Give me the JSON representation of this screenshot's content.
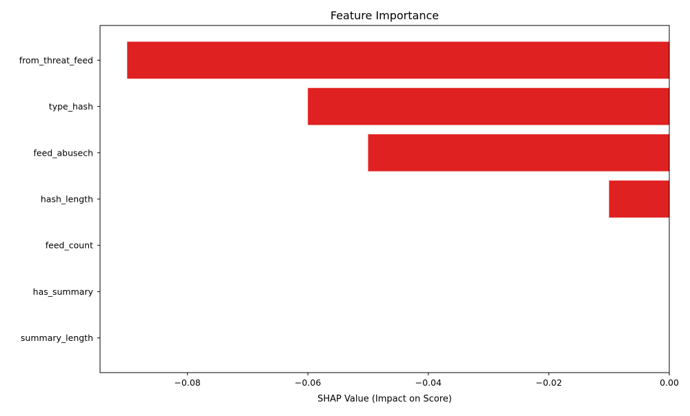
{
  "chart_data": {
    "type": "bar",
    "orientation": "horizontal",
    "title": "Feature Importance",
    "xlabel": "SHAP Value (Impact on Score)",
    "ylabel": "",
    "categories": [
      "from_threat_feed",
      "type_hash",
      "feed_abusech",
      "hash_length",
      "feed_count",
      "has_summary",
      "summary_length"
    ],
    "values": [
      -0.09,
      -0.06,
      -0.05,
      -0.01,
      0,
      0,
      0
    ],
    "xlim": [
      -0.0945,
      0.0
    ],
    "xticks": [
      -0.08,
      -0.06,
      -0.04,
      -0.02,
      0.0
    ],
    "xtick_labels": [
      "−0.08",
      "−0.06",
      "−0.04",
      "−0.02",
      "0.00"
    ],
    "bar_color": "#e02121",
    "grid": false,
    "legend": "none"
  }
}
